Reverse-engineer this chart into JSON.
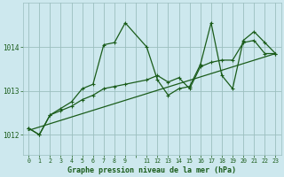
{
  "title": "Graphe pression niveau de la mer (hPa)",
  "bg_color": "#cde8ee",
  "plot_bg_color": "#cde8ee",
  "line_color": "#1a5c1a",
  "grid_color": "#9bbfbf",
  "tick_color": "#1a5c1a",
  "ylabel_ticks": [
    1012,
    1013,
    1014
  ],
  "xlim": [
    -0.5,
    23.5
  ],
  "ylim": [
    1011.55,
    1015.0
  ],
  "xtick_labels": [
    "0",
    "1",
    "2",
    "3",
    "4",
    "5",
    "6",
    "7",
    "8",
    "9",
    "",
    "11",
    "12",
    "13",
    "14",
    "15",
    "16",
    "17",
    "18",
    "19",
    "20",
    "21",
    "22",
    "23"
  ],
  "series1_x": [
    0,
    1,
    2,
    3,
    4,
    5,
    6,
    7,
    8,
    9,
    11,
    12,
    13,
    14,
    15,
    16,
    17,
    18,
    19,
    20,
    21,
    22,
    23
  ],
  "series1_y": [
    1012.15,
    1012.0,
    1012.45,
    1012.6,
    1012.75,
    1013.05,
    1013.15,
    1014.05,
    1014.1,
    1014.55,
    1014.0,
    1013.25,
    1012.9,
    1013.05,
    1013.1,
    1013.6,
    1014.55,
    1013.35,
    1013.05,
    1014.15,
    1014.35,
    1014.1,
    1013.85
  ],
  "series2_x": [
    0,
    1,
    2,
    3,
    4,
    5,
    6,
    7,
    8,
    9,
    11,
    12,
    13,
    14,
    15,
    16,
    17,
    18,
    19,
    20,
    21,
    22,
    23
  ],
  "series2_y": [
    1012.15,
    1012.0,
    1012.45,
    1012.55,
    1012.65,
    1012.8,
    1012.9,
    1013.05,
    1013.1,
    1013.15,
    1013.25,
    1013.35,
    1013.2,
    1013.3,
    1013.05,
    1013.55,
    1013.65,
    1013.7,
    1013.7,
    1014.1,
    1014.15,
    1013.85,
    1013.85
  ],
  "series3_x": [
    0,
    23
  ],
  "series3_y": [
    1012.1,
    1013.85
  ]
}
